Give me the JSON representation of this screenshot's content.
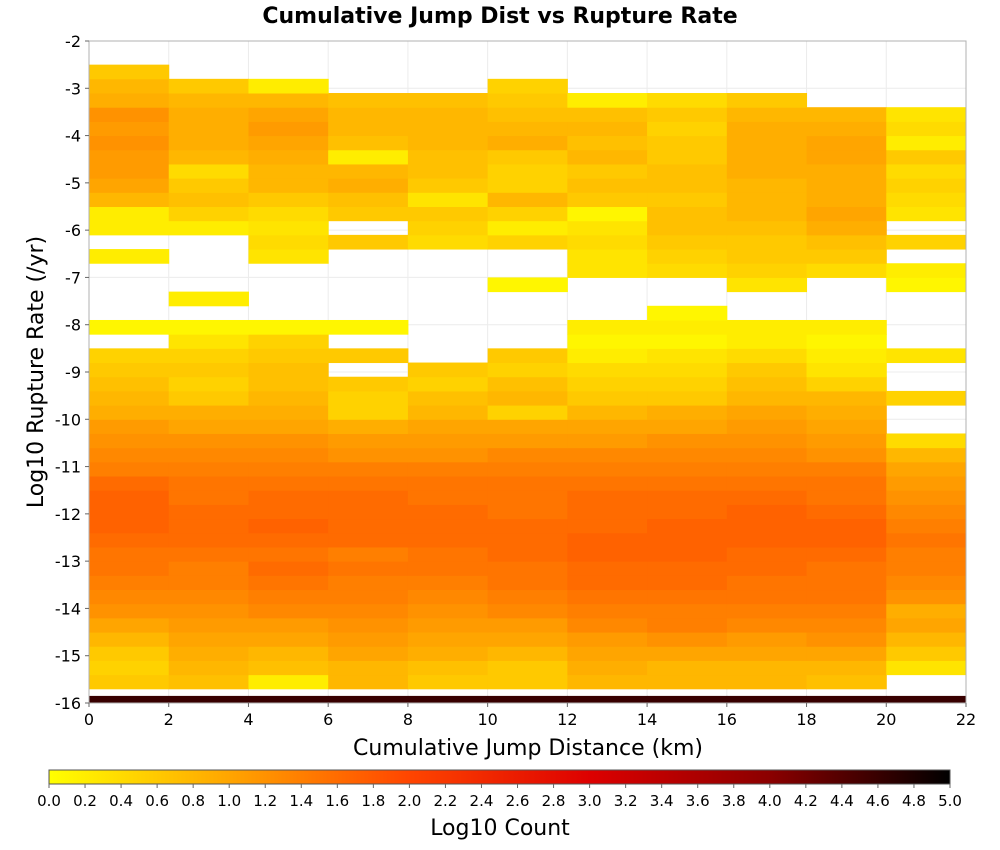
{
  "chart_data": {
    "type": "heatmap",
    "title": "Cumulative Jump Dist vs Rupture Rate",
    "xlabel": "Cumulative Jump Distance (km)",
    "ylabel": "Log10 Rupture Rate (/yr)",
    "xlim": [
      0,
      22
    ],
    "ylim": [
      -16,
      -2
    ],
    "x_ticks": [
      "0",
      "2",
      "4",
      "6",
      "8",
      "10",
      "12",
      "14",
      "16",
      "18",
      "20",
      "22"
    ],
    "y_ticks": [
      "-2",
      "-3",
      "-4",
      "-5",
      "-6",
      "-7",
      "-8",
      "-9",
      "-10",
      "-11",
      "-12",
      "-13",
      "-14",
      "-15",
      "-16"
    ],
    "x_bin_edges": [
      0,
      2,
      4,
      6,
      8,
      10,
      12,
      14,
      16,
      18,
      20,
      22
    ],
    "y_bin_edges_from_bottom": [
      -16.0,
      -15.7,
      -15.4,
      -15.1,
      -14.8,
      -14.5,
      -14.2,
      -13.9,
      -13.6,
      -13.3,
      -13.0,
      -12.7,
      -12.4,
      -12.1,
      -11.8,
      -11.5,
      -11.2,
      -10.9,
      -10.6,
      -10.3,
      -10.0,
      -9.7,
      -9.4,
      -9.1,
      -8.8,
      -8.5,
      -8.2,
      -7.9,
      -7.6,
      -7.3,
      -7.0,
      -6.7,
      -6.4,
      -6.1,
      -5.8,
      -5.5,
      -5.2,
      -4.9,
      -4.6,
      -4.3,
      -4.0,
      -3.7,
      -3.4,
      -3.1,
      -2.8,
      -2.5,
      -2.2
    ],
    "colorbar": {
      "label": "Log10 Count",
      "min": 0.0,
      "max": 5.0,
      "ticks": [
        "0.0",
        "0.2",
        "0.4",
        "0.6",
        "0.8",
        "1.0",
        "1.2",
        "1.4",
        "1.6",
        "1.8",
        "2.0",
        "2.2",
        "2.4",
        "2.6",
        "2.8",
        "3.0",
        "3.2",
        "3.4",
        "3.6",
        "3.8",
        "4.0",
        "4.2",
        "4.4",
        "4.6",
        "4.8",
        "5.0"
      ],
      "colors": [
        "#ffff00",
        "#ffa500",
        "#ff4500",
        "#dd0000",
        "#8b0000",
        "#000000"
      ]
    },
    "rows_from_bottom": [
      [
        4.6,
        4.6,
        4.6,
        4.6,
        4.6,
        4.6,
        4.6,
        4.6,
        4.6,
        4.6,
        4.6
      ],
      [
        0.6,
        0.7,
        0.2,
        0.8,
        0.6,
        0.6,
        0.8,
        0.8,
        0.8,
        0.7,
        null
      ],
      [
        0.5,
        0.8,
        0.7,
        0.8,
        0.7,
        0.6,
        0.9,
        0.8,
        0.8,
        0.8,
        0.3
      ],
      [
        0.6,
        0.9,
        0.8,
        1.0,
        0.9,
        0.8,
        1.0,
        1.0,
        1.0,
        1.0,
        0.6
      ],
      [
        0.8,
        1.0,
        1.0,
        1.1,
        1.0,
        1.0,
        1.1,
        1.2,
        1.1,
        1.2,
        0.8
      ],
      [
        1.0,
        1.1,
        1.1,
        1.2,
        1.1,
        1.1,
        1.3,
        1.4,
        1.3,
        1.3,
        1.0
      ],
      [
        1.2,
        1.2,
        1.3,
        1.3,
        1.2,
        1.3,
        1.4,
        1.4,
        1.4,
        1.4,
        0.9
      ],
      [
        1.3,
        1.3,
        1.4,
        1.4,
        1.3,
        1.4,
        1.5,
        1.5,
        1.5,
        1.5,
        1.2
      ],
      [
        1.4,
        1.4,
        1.5,
        1.4,
        1.4,
        1.5,
        1.6,
        1.6,
        1.5,
        1.5,
        1.3
      ],
      [
        1.5,
        1.4,
        1.6,
        1.5,
        1.5,
        1.5,
        1.6,
        1.6,
        1.6,
        1.5,
        1.4
      ],
      [
        1.5,
        1.5,
        1.5,
        1.4,
        1.5,
        1.6,
        1.7,
        1.7,
        1.6,
        1.6,
        1.4
      ],
      [
        1.6,
        1.6,
        1.6,
        1.6,
        1.6,
        1.6,
        1.7,
        1.7,
        1.7,
        1.7,
        1.5
      ],
      [
        1.7,
        1.6,
        1.7,
        1.6,
        1.6,
        1.6,
        1.6,
        1.7,
        1.7,
        1.7,
        1.4
      ],
      [
        1.7,
        1.6,
        1.6,
        1.6,
        1.6,
        1.5,
        1.6,
        1.6,
        1.7,
        1.6,
        1.3
      ],
      [
        1.7,
        1.5,
        1.6,
        1.6,
        1.5,
        1.5,
        1.6,
        1.6,
        1.6,
        1.5,
        1.2
      ],
      [
        1.6,
        1.5,
        1.5,
        1.5,
        1.5,
        1.5,
        1.5,
        1.5,
        1.5,
        1.5,
        1.1
      ],
      [
        1.4,
        1.4,
        1.4,
        1.4,
        1.4,
        1.4,
        1.4,
        1.4,
        1.4,
        1.4,
        1.0
      ],
      [
        1.3,
        1.3,
        1.3,
        1.2,
        1.2,
        1.3,
        1.3,
        1.3,
        1.3,
        1.2,
        0.8
      ],
      [
        1.2,
        1.2,
        1.2,
        1.1,
        1.1,
        1.1,
        1.1,
        1.2,
        1.2,
        1.1,
        0.4
      ],
      [
        1.1,
        1.0,
        1.0,
        0.9,
        1.0,
        1.0,
        1.0,
        1.0,
        1.1,
        1.0,
        null
      ],
      [
        0.9,
        0.9,
        0.9,
        0.5,
        0.8,
        0.5,
        0.8,
        0.9,
        1.0,
        0.9,
        null
      ],
      [
        0.8,
        0.6,
        0.8,
        0.5,
        0.7,
        0.8,
        0.6,
        0.6,
        0.8,
        0.8,
        0.5
      ],
      [
        0.7,
        0.5,
        0.7,
        0.6,
        0.5,
        0.7,
        0.5,
        0.5,
        0.7,
        0.5,
        null
      ],
      [
        0.6,
        0.6,
        0.7,
        null,
        0.6,
        0.5,
        0.4,
        0.4,
        0.6,
        0.3,
        null
      ],
      [
        0.5,
        0.5,
        0.6,
        0.6,
        null,
        0.6,
        0.2,
        0.3,
        0.4,
        0.2,
        0.3
      ],
      [
        null,
        0.3,
        0.5,
        null,
        null,
        null,
        0.1,
        0.1,
        0.2,
        0.1,
        null
      ],
      [
        0.1,
        0.1,
        0.1,
        0.1,
        null,
        null,
        0.2,
        0.2,
        0.2,
        0.2,
        null
      ],
      [
        null,
        null,
        null,
        null,
        null,
        null,
        null,
        0.1,
        null,
        null,
        null
      ],
      [
        null,
        0.2,
        null,
        null,
        null,
        null,
        null,
        null,
        null,
        null,
        null
      ],
      [
        null,
        null,
        null,
        null,
        null,
        0.1,
        null,
        null,
        0.3,
        null,
        0.1
      ],
      [
        null,
        null,
        null,
        null,
        null,
        null,
        0.3,
        0.4,
        0.5,
        0.4,
        0.2
      ],
      [
        0.2,
        null,
        0.3,
        null,
        null,
        null,
        0.3,
        0.5,
        0.6,
        0.6,
        null
      ],
      [
        null,
        null,
        0.4,
        0.6,
        0.4,
        0.5,
        0.4,
        0.6,
        0.6,
        0.7,
        0.5
      ],
      [
        0.2,
        0.2,
        0.3,
        null,
        0.5,
        0.2,
        0.3,
        0.7,
        0.7,
        0.9,
        null
      ],
      [
        0.2,
        0.5,
        0.4,
        0.6,
        0.6,
        0.5,
        0.1,
        0.7,
        0.8,
        1.0,
        0.3
      ],
      [
        0.8,
        0.7,
        0.6,
        0.7,
        0.3,
        0.8,
        0.6,
        0.6,
        0.8,
        0.9,
        0.4
      ],
      [
        1.0,
        0.6,
        0.8,
        0.9,
        0.6,
        0.5,
        0.7,
        0.7,
        0.8,
        0.9,
        0.5
      ],
      [
        1.1,
        0.4,
        0.8,
        0.8,
        0.7,
        0.5,
        0.6,
        0.7,
        0.9,
        0.9,
        0.4
      ],
      [
        1.1,
        0.8,
        0.9,
        0.2,
        0.7,
        0.6,
        0.8,
        0.6,
        0.9,
        1.0,
        0.6
      ],
      [
        1.2,
        0.9,
        1.0,
        0.7,
        0.8,
        0.9,
        0.7,
        0.6,
        0.9,
        1.0,
        0.2
      ],
      [
        1.1,
        0.9,
        1.1,
        0.8,
        0.8,
        0.8,
        0.8,
        0.5,
        0.9,
        0.9,
        0.4
      ],
      [
        1.2,
        0.9,
        1.0,
        0.8,
        0.8,
        0.7,
        0.7,
        0.6,
        0.8,
        0.8,
        0.3
      ],
      [
        0.9,
        0.8,
        0.8,
        0.7,
        0.7,
        0.6,
        0.2,
        0.4,
        0.6,
        null,
        null
      ],
      [
        0.8,
        0.6,
        0.2,
        null,
        null,
        0.5,
        null,
        null,
        null,
        null,
        null
      ],
      [
        0.6,
        null,
        null,
        null,
        null,
        null,
        null,
        null,
        null,
        null,
        null
      ],
      [
        null,
        null,
        null,
        null,
        null,
        null,
        null,
        null,
        null,
        null,
        null
      ],
      [
        null,
        null,
        null,
        null,
        null,
        null,
        null,
        null,
        null,
        null,
        null
      ]
    ]
  }
}
